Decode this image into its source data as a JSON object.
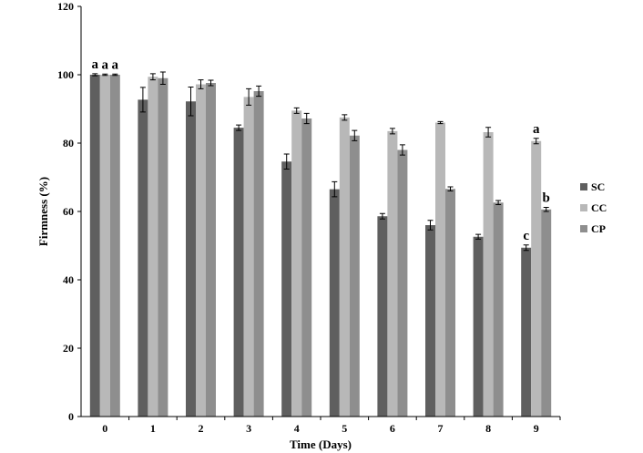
{
  "chart_data": {
    "type": "bar",
    "xlabel": "Time (Days)",
    "ylabel": "Firmness (%)",
    "ylim": [
      0,
      120
    ],
    "yticks": [
      0,
      20,
      40,
      60,
      80,
      100,
      120
    ],
    "categories": [
      "0",
      "1",
      "2",
      "3",
      "4",
      "5",
      "6",
      "7",
      "8",
      "9"
    ],
    "grid": false,
    "legend_position": "right",
    "series": [
      {
        "name": "SC",
        "color": "#5f5f5f",
        "values": [
          100,
          92.7,
          92.2,
          84.5,
          74.6,
          66.5,
          58.6,
          56.0,
          52.6,
          49.4
        ],
        "errors": [
          0.3,
          3.6,
          4.2,
          0.8,
          2.2,
          2.2,
          0.8,
          1.4,
          0.7,
          0.8
        ]
      },
      {
        "name": "CC",
        "color": "#b8b8b8",
        "values": [
          100,
          99.4,
          97.2,
          93.5,
          89.5,
          87.5,
          83.5,
          86.0,
          83.2,
          80.6
        ],
        "errors": [
          0.2,
          0.9,
          1.3,
          2.4,
          0.8,
          0.8,
          0.8,
          0.3,
          1.4,
          0.8
        ]
      },
      {
        "name": "CP",
        "color": "#8e8e8e",
        "values": [
          100,
          99.0,
          97.6,
          95.2,
          87.2,
          82.2,
          78.0,
          66.6,
          62.6,
          60.6
        ],
        "errors": [
          0.2,
          1.8,
          0.8,
          1.5,
          1.5,
          1.5,
          1.5,
          0.6,
          0.6,
          0.6
        ]
      }
    ],
    "annotations": [
      {
        "category": "0",
        "series": "SC",
        "text": "a"
      },
      {
        "category": "0",
        "series": "CC",
        "text": "a"
      },
      {
        "category": "0",
        "series": "CP",
        "text": "a"
      },
      {
        "category": "9",
        "series": "SC",
        "text": "c"
      },
      {
        "category": "9",
        "series": "CC",
        "text": "a"
      },
      {
        "category": "9",
        "series": "CP",
        "text": "b"
      }
    ]
  }
}
